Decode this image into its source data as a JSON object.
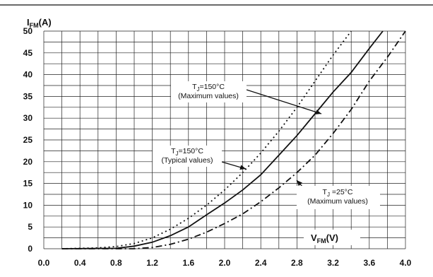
{
  "chart_data": {
    "type": "line",
    "ylabel": {
      "main": "I",
      "sub": "FM",
      "unit": "(A)"
    },
    "xlabel": {
      "main": "V",
      "sub": "FM",
      "unit": "(V)"
    },
    "xlim": [
      0.0,
      4.0
    ],
    "ylim": [
      0,
      50
    ],
    "x_ticks": [
      "0.0",
      "0.4",
      "0.8",
      "1.2",
      "1.6",
      "2.0",
      "2.4",
      "2.8",
      "3.2",
      "3.6",
      "4.0"
    ],
    "y_ticks": [
      "0",
      "5",
      "10",
      "15",
      "20",
      "25",
      "30",
      "35",
      "40",
      "45",
      "50"
    ],
    "grid": true,
    "series": [
      {
        "style": "dotted",
        "points": [
          [
            0.2,
            0
          ],
          [
            0.6,
            0.2
          ],
          [
            0.8,
            0.5
          ],
          [
            1.0,
            1.2
          ],
          [
            1.2,
            2.5
          ],
          [
            1.4,
            4.5
          ],
          [
            1.6,
            7.0
          ],
          [
            1.8,
            10.0
          ],
          [
            2.0,
            13.5
          ],
          [
            2.2,
            17.5
          ],
          [
            2.4,
            22.0
          ],
          [
            2.6,
            27.0
          ],
          [
            2.8,
            32.5
          ],
          [
            3.0,
            38.5
          ],
          [
            3.2,
            44.5
          ],
          [
            3.4,
            50.0
          ]
        ]
      },
      {
        "style": "solid",
        "points": [
          [
            0.2,
            0
          ],
          [
            0.8,
            0.1
          ],
          [
            1.0,
            0.6
          ],
          [
            1.2,
            1.5
          ],
          [
            1.4,
            3.0
          ],
          [
            1.6,
            5.0
          ],
          [
            1.8,
            7.8
          ],
          [
            2.0,
            10.5
          ],
          [
            2.2,
            13.5
          ],
          [
            2.4,
            17.0
          ],
          [
            2.6,
            21.5
          ],
          [
            2.8,
            26.0
          ],
          [
            3.0,
            31.0
          ],
          [
            3.2,
            36.0
          ],
          [
            3.4,
            40.5
          ],
          [
            3.6,
            46.0
          ],
          [
            3.75,
            50.0
          ]
        ]
      },
      {
        "style": "dash-dot",
        "points": [
          [
            0.2,
            0
          ],
          [
            1.0,
            0
          ],
          [
            1.2,
            0.3
          ],
          [
            1.4,
            1.0
          ],
          [
            1.6,
            2.2
          ],
          [
            1.8,
            3.8
          ],
          [
            2.0,
            5.8
          ],
          [
            2.2,
            8.0
          ],
          [
            2.4,
            10.8
          ],
          [
            2.6,
            14.0
          ],
          [
            2.8,
            17.5
          ],
          [
            3.0,
            21.5
          ],
          [
            3.2,
            26.5
          ],
          [
            3.4,
            32.0
          ],
          [
            3.6,
            38.5
          ],
          [
            3.8,
            44.0
          ],
          [
            4.0,
            50.0
          ]
        ]
      }
    ],
    "annotations": [
      {
        "line1_pre": "T",
        "line1_sub": "J",
        "line1_post": "=150°C",
        "line2": "(Maximum values)"
      },
      {
        "line1_pre": "T",
        "line1_sub": "J",
        "line1_post": "=150°C",
        "line2": "(Typical values)"
      },
      {
        "line1_pre": "T",
        "line1_sub": "J",
        "line1_post": " =25°C",
        "line2": "(Maximum values)"
      }
    ],
    "colors": {
      "line": "#111111",
      "grid": "#222222",
      "background": "#ffffff"
    }
  }
}
